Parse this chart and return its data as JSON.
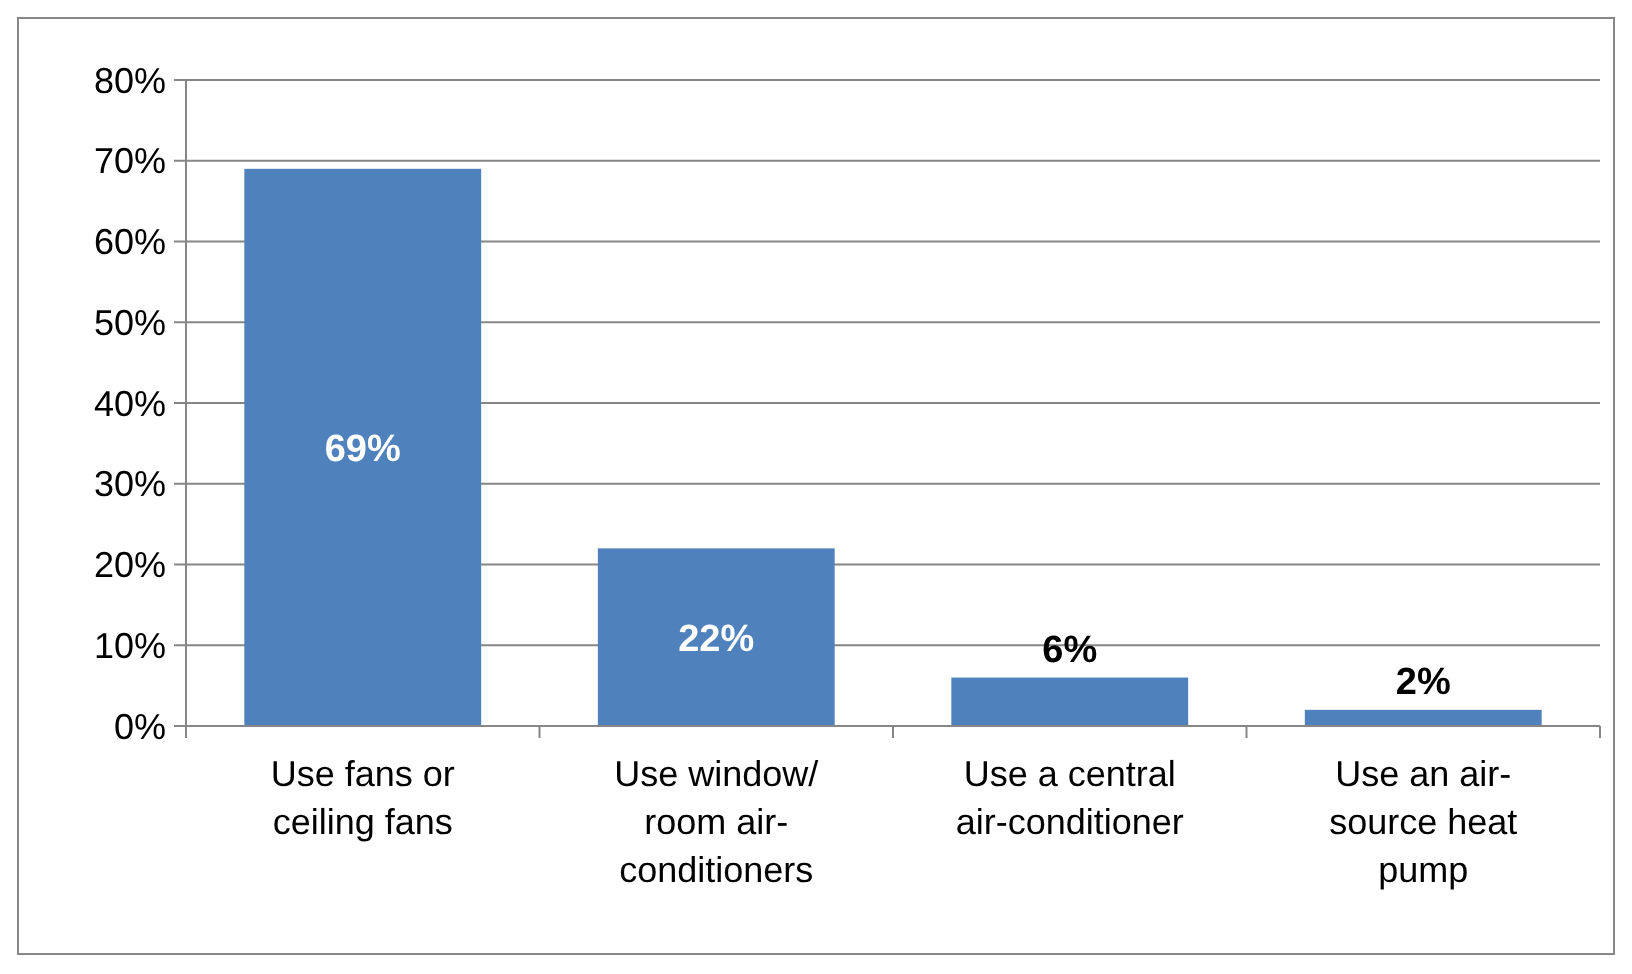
{
  "chart_data": {
    "type": "bar",
    "categories": [
      "Use fans or ceiling fans",
      "Use window/ room air-conditioners",
      "Use a central air-conditioner",
      "Use an air-source heat pump"
    ],
    "values": [
      69,
      22,
      6,
      2
    ],
    "color": "#4f81bd",
    "value_labels": [
      "69%",
      "22%",
      "6%",
      "2%"
    ],
    "ylim": [
      0,
      80
    ],
    "yticks": [
      {
        "value": 0,
        "label": "0%"
      },
      {
        "value": 10,
        "label": "10%"
      },
      {
        "value": 20,
        "label": "20%"
      },
      {
        "value": 30,
        "label": "30%"
      },
      {
        "value": 40,
        "label": "40%"
      },
      {
        "value": 50,
        "label": "50%"
      },
      {
        "value": 60,
        "label": "60%"
      },
      {
        "value": 70,
        "label": "70%"
      },
      {
        "value": 80,
        "label": "80%"
      }
    ],
    "grid": "y"
  }
}
